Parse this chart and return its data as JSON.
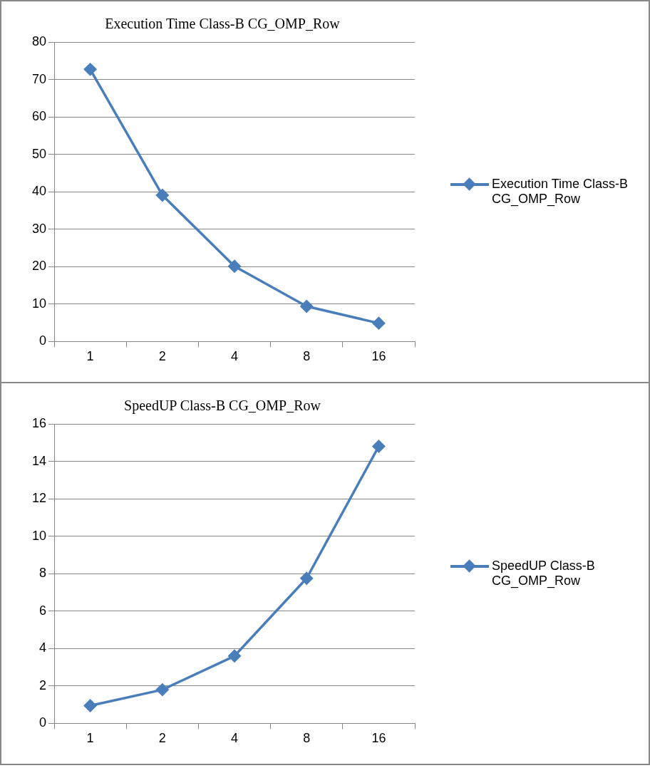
{
  "chart_data": [
    {
      "type": "line",
      "title": "Execution Time Class-B CG_OMP_Row",
      "categories": [
        "1",
        "2",
        "4",
        "8",
        "16"
      ],
      "series": [
        {
          "name": "Execution Time Class-B CG_OMP_Row",
          "color": "#4a7ebb",
          "values": [
            72.7,
            39.1,
            20.1,
            9.4,
            4.9
          ]
        }
      ],
      "ylim": [
        0,
        80
      ],
      "yticks": [
        0,
        10,
        20,
        30,
        40,
        50,
        60,
        70,
        80
      ],
      "grid": "y",
      "legend": "right",
      "marker": "diamond",
      "line_style": "solid"
    },
    {
      "type": "line",
      "title": "SpeedUP Class-B CG_OMP_Row",
      "categories": [
        "1",
        "2",
        "4",
        "8",
        "16"
      ],
      "series": [
        {
          "name": "SpeedUP Class-B CG_OMP_Row",
          "color": "#4a7ebb",
          "values": [
            0.95,
            1.8,
            3.6,
            7.75,
            14.8
          ]
        }
      ],
      "ylim": [
        0,
        16
      ],
      "yticks": [
        0,
        2,
        4,
        6,
        8,
        10,
        12,
        14,
        16
      ],
      "grid": "y",
      "legend": "right",
      "marker": "diamond",
      "line_style": "solid"
    }
  ]
}
